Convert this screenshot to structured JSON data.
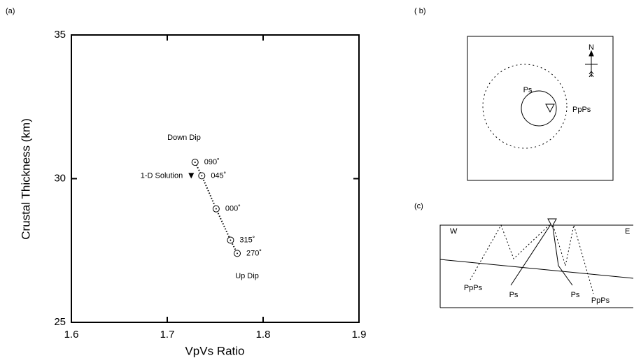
{
  "chart_data": {
    "type": "scatter",
    "panel_label": "(a)",
    "xlabel": "VpVs Ratio",
    "ylabel": "Crustal Thickness (km)",
    "x": [
      1.729,
      1.736,
      1.751,
      1.766,
      1.773
    ],
    "values": [
      30.57,
      30.1,
      28.95,
      27.86,
      27.4
    ],
    "point_labels": [
      "090˚",
      "045˚",
      "000˚",
      "315˚",
      "270˚"
    ],
    "solution": {
      "label": "1-D Solution",
      "x": 1.725,
      "value": 30.1
    },
    "annotations": [
      "Down Dip",
      "Up Dip"
    ],
    "xlim": [
      1.6,
      1.9
    ],
    "xticks": [
      1.6,
      1.7,
      1.8,
      1.9
    ],
    "ylim": [
      25,
      35
    ],
    "yticks": [
      25,
      30,
      35
    ],
    "grid": false
  },
  "panel_b": {
    "label": "( b)",
    "north": "N",
    "inner": "Ps",
    "outer": "PpPs"
  },
  "panel_c": {
    "label": "(c)",
    "west": "W",
    "east": "E",
    "rays": [
      "PpPs",
      "Ps",
      "Ps",
      "PpPs"
    ]
  }
}
